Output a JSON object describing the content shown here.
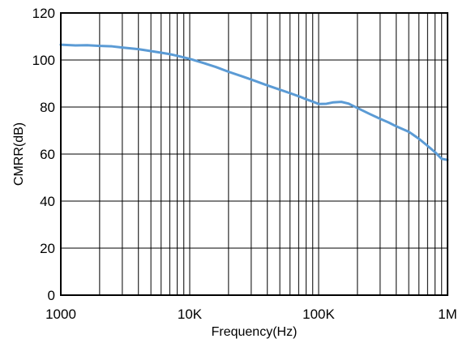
{
  "chart_data": {
    "type": "line",
    "title": "",
    "xlabel": "Frequency(Hz)",
    "ylabel": "CMRR(dB)",
    "x_scale": "log",
    "xlim": [
      1000,
      1000000
    ],
    "ylim": [
      0,
      120
    ],
    "grid": true,
    "legend": "none",
    "x_tick_labels": [
      "1000",
      "10K",
      "100K",
      "1M"
    ],
    "x_tick_values": [
      1000,
      10000,
      100000,
      1000000
    ],
    "y_tick_values": [
      0,
      20,
      40,
      60,
      80,
      100,
      120
    ],
    "y_tick_labels": [
      "0",
      "20",
      "40",
      "60",
      "80",
      "100",
      "120"
    ],
    "series": [
      {
        "color": "#5b9bd5",
        "x": [
          1000,
          1300,
          1600,
          2000,
          2500,
          3000,
          4000,
          5000,
          6000,
          7000,
          8000,
          10000,
          13000,
          16000,
          20000,
          25000,
          30000,
          40000,
          50000,
          60000,
          70000,
          80000,
          90000,
          100000,
          115000,
          130000,
          150000,
          170000,
          200000,
          250000,
          300000,
          350000,
          400000,
          500000,
          600000,
          700000,
          800000,
          900000,
          1000000
        ],
        "y": [
          106.5,
          106.2,
          106.3,
          106.0,
          105.8,
          105.3,
          104.6,
          103.8,
          103.1,
          102.5,
          101.8,
          100.5,
          98.6,
          97.0,
          95.0,
          93.2,
          91.7,
          89.2,
          87.4,
          85.9,
          84.6,
          83.3,
          82.3,
          81.3,
          81.4,
          82.0,
          82.2,
          81.5,
          79.6,
          77.0,
          75.0,
          73.4,
          71.8,
          69.5,
          66.5,
          63.5,
          60.8,
          58.0,
          57.5
        ]
      }
    ]
  }
}
